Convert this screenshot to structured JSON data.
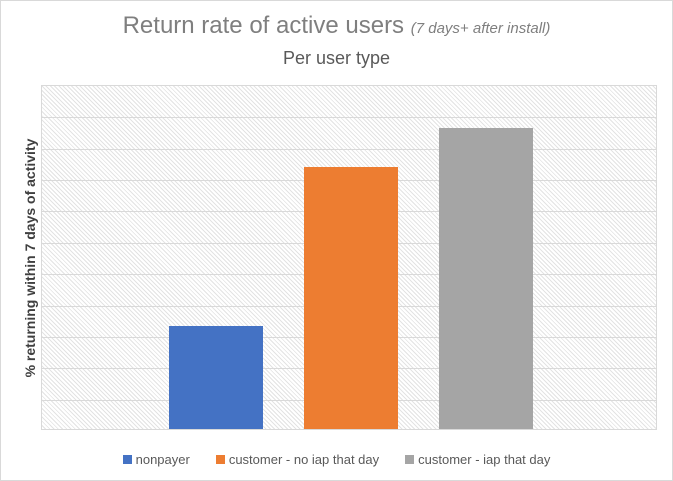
{
  "chart_data": {
    "type": "bar",
    "title": "Return rate of active users",
    "title_suffix": "(7 days+ after install)",
    "subtitle": "Per user type",
    "xlabel": "",
    "ylabel": "% returning within 7 days of activity",
    "categories": [
      "nonpayer",
      "customer - no iap that day",
      "customer - iap that day"
    ],
    "values": [
      3.3,
      8.35,
      9.6
    ],
    "value_units": "gridline intervals (y-axis unlabeled)",
    "ylim": [
      0,
      11
    ],
    "gridlines": 11,
    "grid": true,
    "y_tick_labels_visible": false,
    "legend_position": "bottom",
    "colors": [
      "#4472c4",
      "#ed7d31",
      "#a5a5a5"
    ]
  }
}
